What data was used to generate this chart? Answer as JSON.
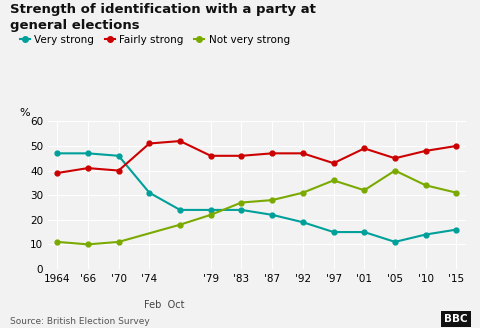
{
  "title": "Strength of identification with a party at\ngeneral elections",
  "source": "Source: British Election Survey",
  "ylabel": "%",
  "ylim": [
    0,
    60
  ],
  "yticks": [
    0,
    10,
    20,
    30,
    40,
    50,
    60
  ],
  "background_color": "#f2f2f2",
  "series": [
    {
      "name": "Very strong",
      "color": "#00a09a",
      "values": [
        47,
        47,
        46,
        31,
        24,
        24,
        24,
        22,
        19,
        15,
        15,
        11,
        14,
        16
      ],
      "x_idx": [
        0,
        1,
        2,
        3,
        4,
        5,
        6,
        7,
        8,
        9,
        10,
        11,
        12,
        13
      ]
    },
    {
      "name": "Fairly strong",
      "color": "#cc0000",
      "values": [
        39,
        41,
        40,
        51,
        52,
        46,
        46,
        47,
        47,
        43,
        49,
        45,
        48,
        50
      ],
      "x_idx": [
        0,
        1,
        2,
        3,
        4,
        5,
        6,
        7,
        8,
        9,
        10,
        11,
        12,
        13
      ]
    },
    {
      "name": "Not very strong",
      "color": "#7aaa00",
      "values": [
        11,
        10,
        11,
        18,
        22,
        27,
        28,
        31,
        36,
        32,
        40,
        34,
        31
      ],
      "x_idx": [
        0,
        1,
        2,
        4,
        5,
        6,
        7,
        8,
        9,
        10,
        11,
        12,
        13
      ]
    }
  ],
  "x_tick_positions": [
    0,
    1,
    2,
    3,
    5,
    6,
    7,
    8,
    9,
    10,
    11,
    12,
    13
  ],
  "x_tick_labels": [
    "1964",
    "'66",
    "'70",
    "'74",
    "'79",
    "'83",
    "'87",
    "'92",
    "'97",
    "'01",
    "'05",
    "'10",
    "'15"
  ],
  "feb_oct_x": 3,
  "feb_label": "Feb",
  "oct_label": "Oct",
  "oct_x": 4
}
